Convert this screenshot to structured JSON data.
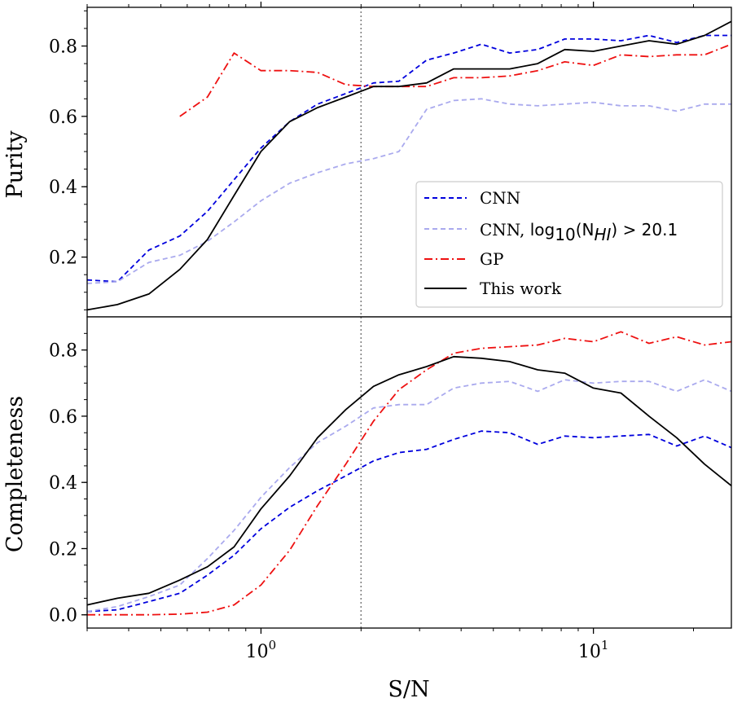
{
  "chart_data": [
    {
      "type": "line",
      "panel": "top",
      "ylabel": "Purity",
      "xscale": "log",
      "xlim": [
        0.3,
        26
      ],
      "ylim": [
        0.03,
        0.91
      ],
      "yticks": [
        "0.2",
        "0.4",
        "0.6",
        "0.8"
      ],
      "yticks_values": [
        0.2,
        0.4,
        0.6,
        0.8
      ],
      "vline_x": 2.0,
      "legend": {
        "position": "lower-right",
        "entries": [
          {
            "label": "CNN",
            "series": "cnn"
          },
          {
            "label_main": "CNN, ",
            "label_math": "log",
            "label_sub": "10",
            "label_rest": "(N",
            "label_hi": "HI",
            "label_tail": ") > 20.1",
            "series": "cnn_hi"
          },
          {
            "label": "GP",
            "series": "gp"
          },
          {
            "label": "This work",
            "series": "thiswork"
          }
        ]
      },
      "series": [
        {
          "key": "cnn",
          "name": "CNN",
          "color": "#0000dd",
          "dash": "dashed",
          "x": [
            0.3,
            0.37,
            0.46,
            0.57,
            0.69,
            0.83,
            1.0,
            1.22,
            1.48,
            1.8,
            2.18,
            2.6,
            3.15,
            3.8,
            4.6,
            5.6,
            6.8,
            8.2,
            10.0,
            12.1,
            14.7,
            17.8,
            21.6,
            26.0
          ],
          "values": [
            0.135,
            0.13,
            0.22,
            0.26,
            0.33,
            0.42,
            0.51,
            0.585,
            0.635,
            0.665,
            0.695,
            0.7,
            0.76,
            0.78,
            0.805,
            0.78,
            0.79,
            0.82,
            0.82,
            0.815,
            0.83,
            0.81,
            0.83,
            0.83
          ]
        },
        {
          "key": "cnn_hi",
          "name": "CNN, log10(NHI) > 20.1",
          "color": "#aaaaee",
          "dash": "dashed",
          "x": [
            0.3,
            0.37,
            0.46,
            0.57,
            0.69,
            0.83,
            1.0,
            1.22,
            1.48,
            1.8,
            2.18,
            2.6,
            3.15,
            3.8,
            4.6,
            5.6,
            6.8,
            8.2,
            10.0,
            12.1,
            14.7,
            17.8,
            21.6,
            26.0
          ],
          "values": [
            0.125,
            0.13,
            0.185,
            0.205,
            0.245,
            0.3,
            0.36,
            0.41,
            0.44,
            0.465,
            0.48,
            0.5,
            0.62,
            0.645,
            0.65,
            0.635,
            0.63,
            0.635,
            0.64,
            0.63,
            0.63,
            0.615,
            0.635,
            0.635
          ]
        },
        {
          "key": "gp",
          "name": "GP",
          "color": "#ee1111",
          "dash": "dashdot",
          "x": [
            0.57,
            0.69,
            0.83,
            1.0,
            1.22,
            1.48,
            1.8,
            2.18,
            2.6,
            3.15,
            3.8,
            4.6,
            5.6,
            6.8,
            8.2,
            10.0,
            12.1,
            14.7,
            17.8,
            21.6,
            26.0
          ],
          "values": [
            0.6,
            0.655,
            0.78,
            0.73,
            0.73,
            0.725,
            0.69,
            0.685,
            0.685,
            0.685,
            0.71,
            0.71,
            0.715,
            0.73,
            0.755,
            0.745,
            0.775,
            0.77,
            0.775,
            0.775,
            0.805
          ]
        },
        {
          "key": "thiswork",
          "name": "This work",
          "color": "#000000",
          "dash": "solid",
          "x": [
            0.3,
            0.37,
            0.46,
            0.57,
            0.69,
            0.83,
            1.0,
            1.22,
            1.48,
            1.8,
            2.18,
            2.6,
            3.15,
            3.8,
            4.6,
            5.6,
            6.8,
            8.2,
            10.0,
            12.1,
            14.7,
            17.8,
            21.6,
            26.0
          ],
          "values": [
            0.05,
            0.065,
            0.095,
            0.165,
            0.25,
            0.375,
            0.5,
            0.585,
            0.625,
            0.655,
            0.685,
            0.685,
            0.695,
            0.735,
            0.735,
            0.735,
            0.75,
            0.79,
            0.785,
            0.8,
            0.815,
            0.805,
            0.83,
            0.87
          ]
        }
      ]
    },
    {
      "type": "line",
      "panel": "bottom",
      "ylabel": "Completeness",
      "xlabel": "S/N",
      "xscale": "log",
      "xlim": [
        0.3,
        26
      ],
      "ylim": [
        -0.04,
        0.9
      ],
      "yticks": [
        "0.0",
        "0.2",
        "0.4",
        "0.6",
        "0.8"
      ],
      "yticks_values": [
        0.0,
        0.2,
        0.4,
        0.6,
        0.8
      ],
      "xticks_base": "10",
      "xticks_exp": [
        "0",
        "1"
      ],
      "xticks_values": [
        1,
        10
      ],
      "vline_x": 2.0,
      "series": [
        {
          "key": "cnn",
          "name": "CNN",
          "color": "#0000dd",
          "dash": "dashed",
          "x": [
            0.3,
            0.37,
            0.46,
            0.57,
            0.69,
            0.83,
            1.0,
            1.22,
            1.48,
            1.8,
            2.18,
            2.6,
            3.15,
            3.8,
            4.6,
            5.6,
            6.8,
            8.2,
            10.0,
            12.1,
            14.7,
            17.8,
            21.6,
            26.0
          ],
          "values": [
            0.01,
            0.015,
            0.04,
            0.065,
            0.12,
            0.18,
            0.26,
            0.325,
            0.375,
            0.42,
            0.465,
            0.49,
            0.5,
            0.53,
            0.555,
            0.55,
            0.515,
            0.54,
            0.535,
            0.54,
            0.545,
            0.51,
            0.54,
            0.505
          ]
        },
        {
          "key": "cnn_hi",
          "name": "CNN, log10(NHI) > 20.1",
          "color": "#aaaaee",
          "dash": "dashed",
          "x": [
            0.3,
            0.37,
            0.46,
            0.57,
            0.69,
            0.83,
            1.0,
            1.22,
            1.48,
            1.8,
            2.18,
            2.6,
            3.15,
            3.8,
            4.6,
            5.6,
            6.8,
            8.2,
            10.0,
            12.1,
            14.7,
            17.8,
            21.6,
            26.0
          ],
          "values": [
            0.01,
            0.025,
            0.055,
            0.09,
            0.17,
            0.255,
            0.355,
            0.445,
            0.52,
            0.57,
            0.625,
            0.635,
            0.635,
            0.685,
            0.7,
            0.705,
            0.675,
            0.71,
            0.7,
            0.705,
            0.705,
            0.675,
            0.71,
            0.675
          ]
        },
        {
          "key": "gp",
          "name": "GP",
          "color": "#ee1111",
          "dash": "dashdot",
          "x": [
            0.3,
            0.37,
            0.46,
            0.57,
            0.69,
            0.83,
            1.0,
            1.22,
            1.48,
            1.8,
            2.18,
            2.6,
            3.15,
            3.8,
            4.6,
            5.6,
            6.8,
            8.2,
            10.0,
            12.1,
            14.7,
            17.8,
            21.6,
            26.0
          ],
          "values": [
            0.0,
            0.0,
            0.0,
            0.002,
            0.008,
            0.03,
            0.09,
            0.195,
            0.33,
            0.455,
            0.585,
            0.68,
            0.74,
            0.79,
            0.805,
            0.81,
            0.815,
            0.835,
            0.825,
            0.855,
            0.82,
            0.84,
            0.815,
            0.825
          ]
        },
        {
          "key": "thiswork",
          "name": "This work",
          "color": "#000000",
          "dash": "solid",
          "x": [
            0.3,
            0.37,
            0.46,
            0.57,
            0.69,
            0.83,
            1.0,
            1.22,
            1.48,
            1.8,
            2.18,
            2.6,
            3.15,
            3.8,
            4.6,
            5.6,
            6.8,
            8.2,
            10.0,
            12.1,
            14.7,
            17.8,
            21.6,
            26.0
          ],
          "values": [
            0.03,
            0.05,
            0.065,
            0.105,
            0.145,
            0.205,
            0.32,
            0.42,
            0.535,
            0.62,
            0.69,
            0.725,
            0.75,
            0.78,
            0.775,
            0.765,
            0.74,
            0.73,
            0.685,
            0.67,
            0.6,
            0.535,
            0.455,
            0.39
          ]
        }
      ]
    }
  ]
}
